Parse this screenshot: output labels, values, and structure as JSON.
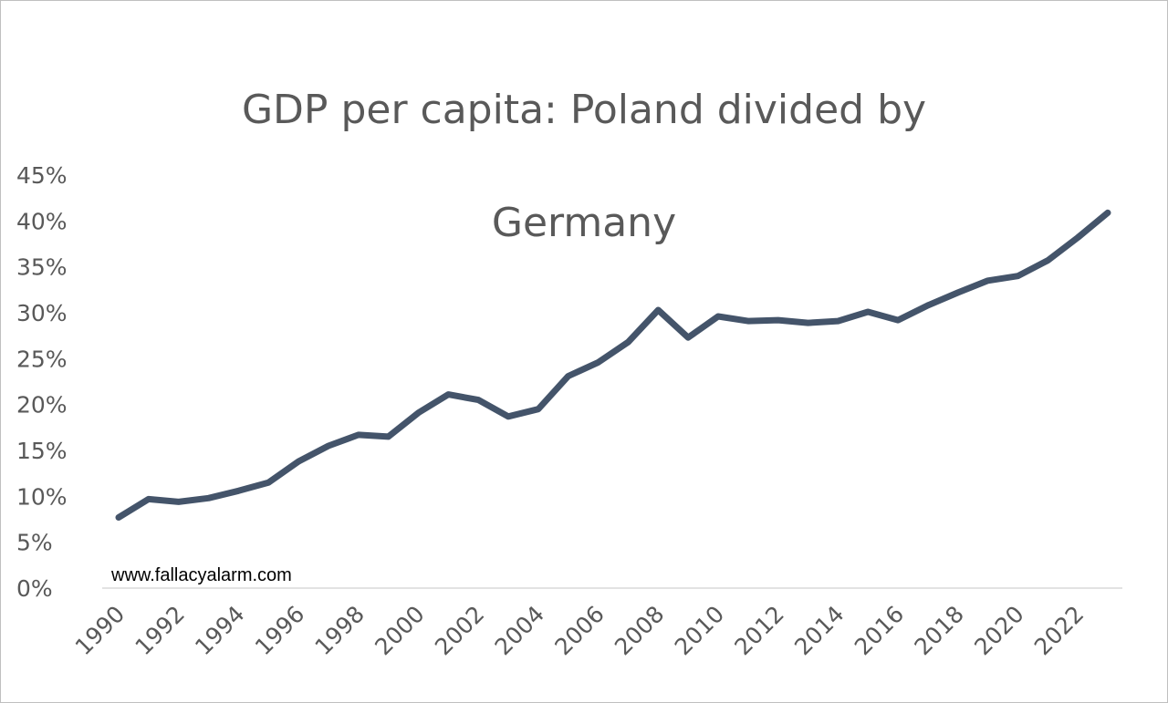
{
  "chart_data": {
    "type": "line",
    "title": "GDP per capita: Poland divided by Germany",
    "title_lines": [
      "GDP per capita: Poland divided by",
      "Germany"
    ],
    "xlabel": "",
    "ylabel": "",
    "x": [
      1990,
      1991,
      1992,
      1993,
      1994,
      1995,
      1996,
      1997,
      1998,
      1999,
      2000,
      2001,
      2002,
      2003,
      2004,
      2005,
      2006,
      2007,
      2008,
      2009,
      2010,
      2011,
      2012,
      2013,
      2014,
      2015,
      2016,
      2017,
      2018,
      2019,
      2020,
      2021,
      2022,
      2023
    ],
    "x_tick_labels": [
      "1990",
      "1992",
      "1994",
      "1996",
      "1998",
      "2000",
      "2002",
      "2004",
      "2006",
      "2008",
      "2010",
      "2012",
      "2014",
      "2016",
      "2018",
      "2020",
      "2022"
    ],
    "series": [
      {
        "values": [
          0.077,
          0.097,
          0.094,
          0.098,
          0.106,
          0.115,
          0.138,
          0.155,
          0.167,
          0.165,
          0.191,
          0.211,
          0.205,
          0.187,
          0.195,
          0.231,
          0.246,
          0.268,
          0.303,
          0.273,
          0.296,
          0.291,
          0.292,
          0.289,
          0.291,
          0.301,
          0.292,
          0.308,
          0.322,
          0.335,
          0.34,
          0.357,
          0.382,
          0.409
        ],
        "color": "#44546a"
      }
    ],
    "ylim": [
      0,
      0.45
    ],
    "y_ticks": [
      0,
      0.05,
      0.1,
      0.15,
      0.2,
      0.25,
      0.3,
      0.35,
      0.4,
      0.45
    ],
    "y_tick_labels": [
      "0%",
      "5%",
      "10%",
      "15%",
      "20%",
      "25%",
      "30%",
      "35%",
      "40%",
      "45%"
    ],
    "grid": false,
    "legend": "none",
    "annotations": [
      "www.fallacyalarm.com"
    ]
  }
}
